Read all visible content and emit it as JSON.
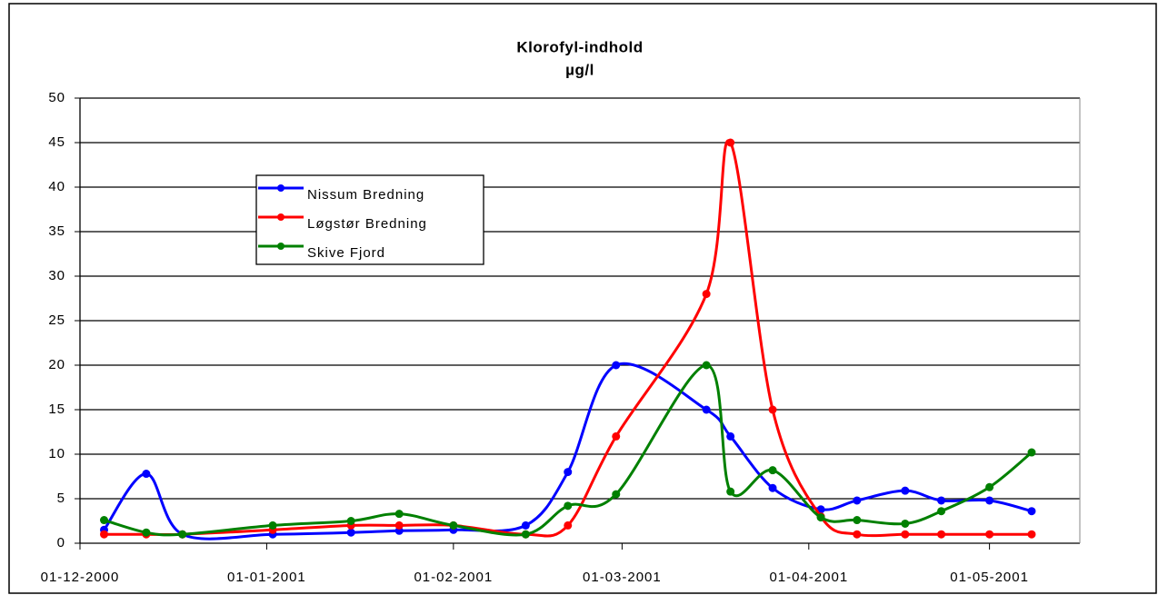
{
  "chart_data": {
    "type": "line",
    "title": "Klorofyl-indhold",
    "subtitle": "µg/l",
    "x": [
      "2000-12-05",
      "2000-12-12",
      "2000-12-18",
      "2001-01-02",
      "2001-01-15",
      "2001-01-23",
      "2001-02-01",
      "2001-02-13",
      "2001-02-20",
      "2001-02-28",
      "2001-03-15",
      "2001-03-19",
      "2001-03-26",
      "2001-04-03",
      "2001-04-09",
      "2001-04-17",
      "2001-04-23",
      "2001-05-01",
      "2001-05-08"
    ],
    "series": [
      {
        "name": "Nissum Bredning",
        "color": "#0000ff",
        "values": [
          1.5,
          7.8,
          1.0,
          1.0,
          1.2,
          1.4,
          1.5,
          2.0,
          8.0,
          20.0,
          15.0,
          12.0,
          6.2,
          3.8,
          4.8,
          5.9,
          4.8,
          4.8,
          3.6
        ]
      },
      {
        "name": "Løgstør Bredning",
        "color": "#ff0000",
        "values": [
          1.0,
          1.0,
          1.0,
          1.5,
          2.0,
          2.0,
          2.0,
          1.0,
          2.0,
          12.0,
          28.0,
          45.0,
          15.0,
          3.0,
          1.0,
          1.0,
          1.0,
          1.0,
          1.0
        ]
      },
      {
        "name": "Skive Fjord",
        "color": "#008000",
        "values": [
          2.6,
          1.2,
          1.0,
          2.0,
          2.5,
          3.3,
          2.0,
          1.0,
          4.2,
          5.5,
          20.0,
          5.8,
          8.2,
          2.9,
          2.6,
          2.2,
          3.6,
          6.3,
          10.2
        ]
      }
    ],
    "xlim": [
      "2000-12-01",
      "2001-05-16"
    ],
    "xticks": [
      {
        "value": "2000-12-01",
        "label": "01-12-2000"
      },
      {
        "value": "2001-01-01",
        "label": "01-01-2001"
      },
      {
        "value": "2001-02-01",
        "label": "01-02-2001"
      },
      {
        "value": "2001-03-01",
        "label": "01-03-2001"
      },
      {
        "value": "2001-04-01",
        "label": "01-04-2001"
      },
      {
        "value": "2001-05-01",
        "label": "01-05-2001"
      }
    ],
    "ylim": [
      0,
      50
    ],
    "yticks": [
      0,
      5,
      10,
      15,
      20,
      25,
      30,
      35,
      40,
      45,
      50
    ],
    "grid": true,
    "legend": "upper left"
  }
}
